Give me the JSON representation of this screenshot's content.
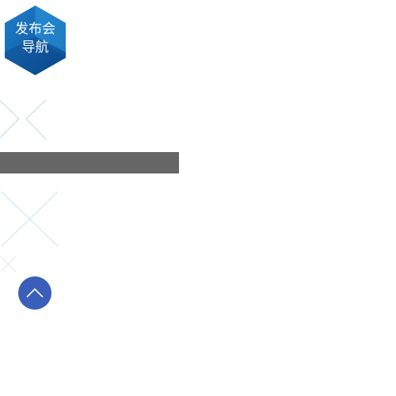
{
  "nav_badge": {
    "line1": "发布会",
    "line2": "导航"
  },
  "icons": {
    "deco_1": "cross-lines",
    "deco_2": "large-cross-lines",
    "deco_3": "small-cross-lines",
    "back_to_top": "chevron-up-icon"
  },
  "colors": {
    "badge_dark": "#0d5aa6",
    "badge_light": "#2b8fd8",
    "bar": "#666666",
    "top_button": "#3a5fba",
    "deco_line": "#c9d4ef"
  }
}
